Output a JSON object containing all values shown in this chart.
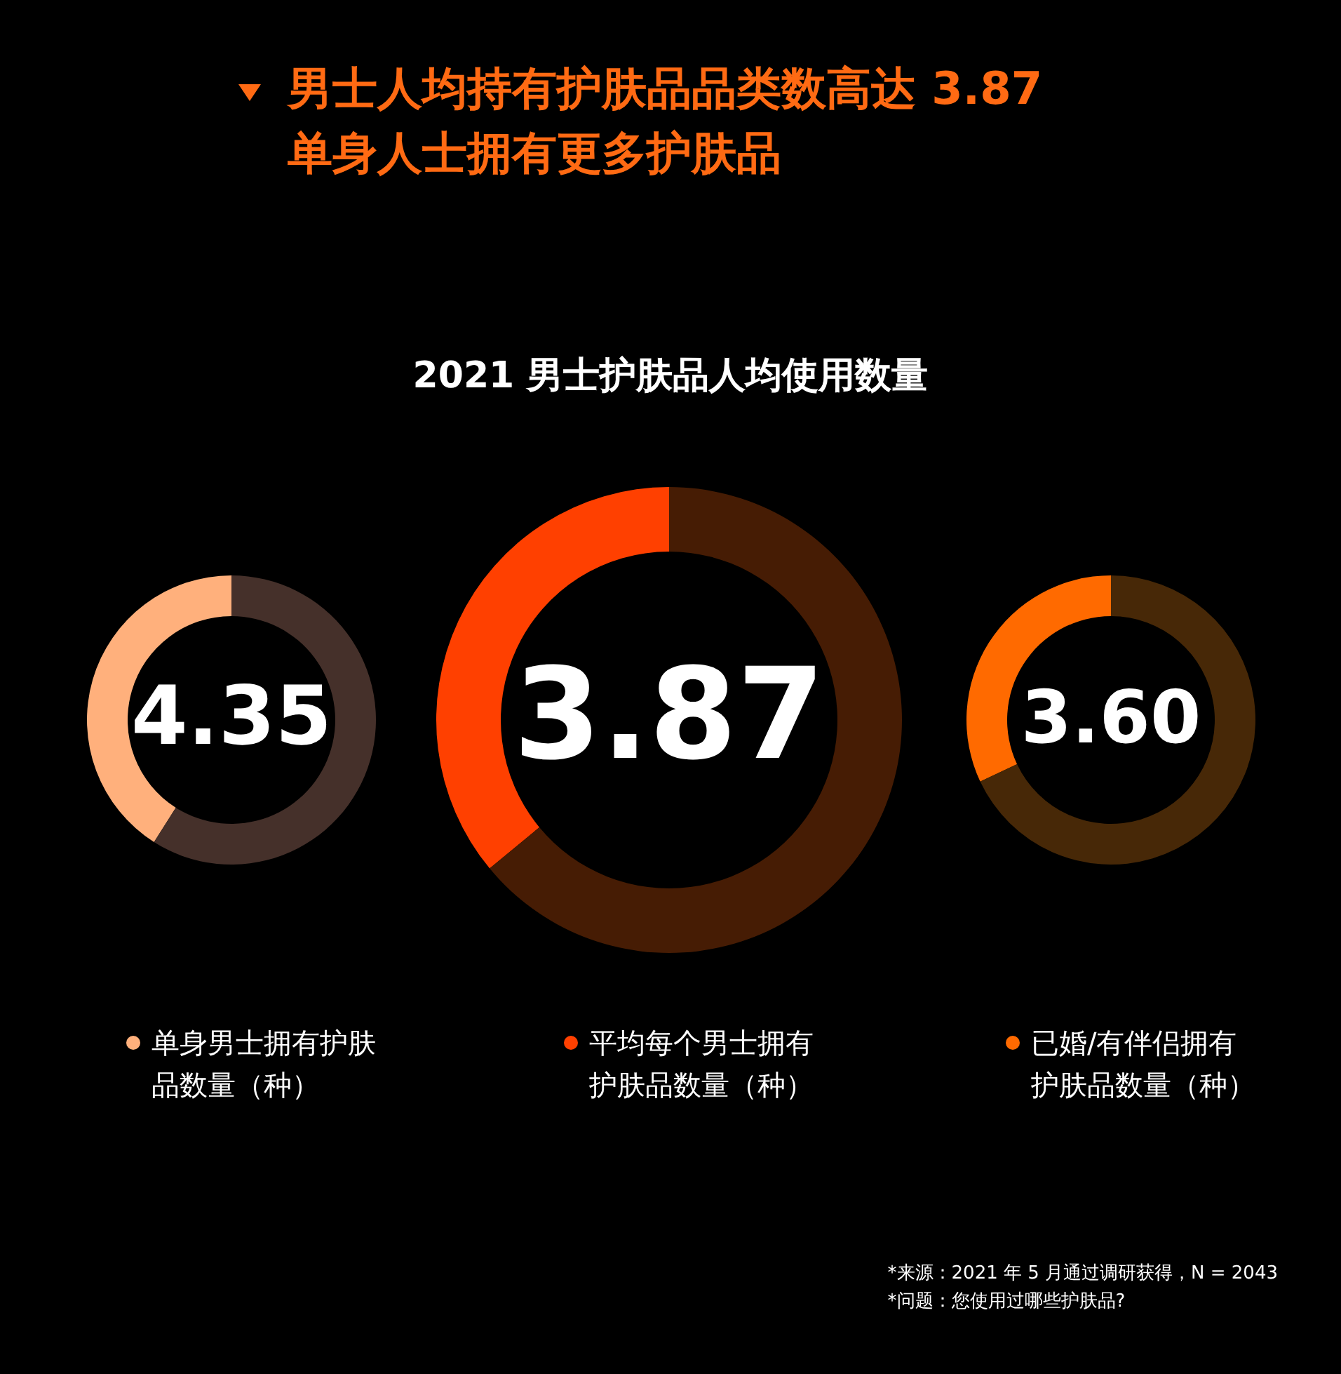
{
  "chart_data": [
    {
      "type": "donut",
      "categories": [
        "单身男士拥有护肤品数量（种）",
        null
      ],
      "values": [
        41,
        59
      ],
      "colors": [
        "#ffb07c",
        "#45302a"
      ],
      "annotations": [
        "4.35"
      ],
      "legend": "bottom"
    },
    {
      "type": "donut",
      "title": "男士人均持有护肤品品类数高达 3.87\n单身人士拥有更多护肤品",
      "subtitle": "2021 男士护肤品人均使用数量",
      "categories": [
        "平均每个男士拥有护肤品数量（种）",
        null
      ],
      "values": [
        36,
        64
      ],
      "colors": [
        "#ff4000",
        "#461c04"
      ],
      "annotations": [
        "3.87"
      ],
      "legend": "bottom"
    },
    {
      "type": "donut",
      "categories": [
        "已婚/有伴侣拥有护肤品数量（种）",
        null
      ],
      "values": [
        32,
        68
      ],
      "colors": [
        "#ff6a00",
        "#472807"
      ],
      "annotations": [
        "3.60",
        "*来源：2021 年 5 月通过调研获得，N = 2043",
        "*问题：您使用过哪些护肤品?"
      ],
      "legend": "bottom"
    }
  ]
}
